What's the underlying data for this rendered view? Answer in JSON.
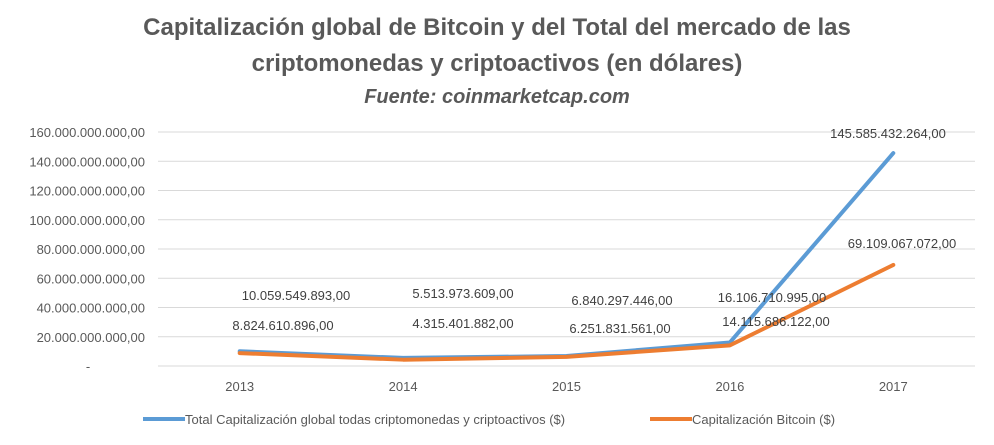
{
  "chart_data": {
    "type": "line",
    "title_lines": [
      "Capitalización  global de Bitcoin y del Total del mercado de las",
      "criptomonedas  y criptoactivos  (en dólares)"
    ],
    "subtitle": "Fuente: coinmarketcap.com",
    "categories": [
      "2013",
      "2014",
      "2015",
      "2016",
      "2017"
    ],
    "ylim": [
      0,
      160000000000
    ],
    "y_ticks": [
      0,
      20000000000,
      40000000000,
      60000000000,
      80000000000,
      100000000000,
      120000000000,
      140000000000,
      160000000000
    ],
    "y_tick_labels": [
      "-",
      "20.000.000.000,00",
      "40.000.000.000,00",
      "60.000.000.000,00",
      "80.000.000.000,00",
      "100.000.000.000,00",
      "120.000.000.000,00",
      "140.000.000.000,00",
      "160.000.000.000,00"
    ],
    "grid": true,
    "legend_position": "bottom",
    "series": [
      {
        "name": "Total Capitalización global todas criptomonedas y criptoactivos ($)",
        "color": "#5b9bd5",
        "values": [
          10059549893,
          5513973609,
          6840297446,
          16106710995,
          145585432264
        ],
        "labels": [
          "10.059.549.893,00",
          "5.513.973.609,00",
          "6.840.297.446,00",
          "16.106.710.995,00",
          "145.585.432.264,00"
        ]
      },
      {
        "name": "Capitalización Bitcoin ($)",
        "color": "#ed7d31",
        "values": [
          8824610896,
          4315401882,
          6251831561,
          14115686122,
          69109067072
        ],
        "labels": [
          "8.824.610.896,00",
          "4.315.401.882,00",
          "6.251.831.561,00",
          "14.115.686.122,00",
          "69.109.067.072,00"
        ]
      }
    ]
  }
}
